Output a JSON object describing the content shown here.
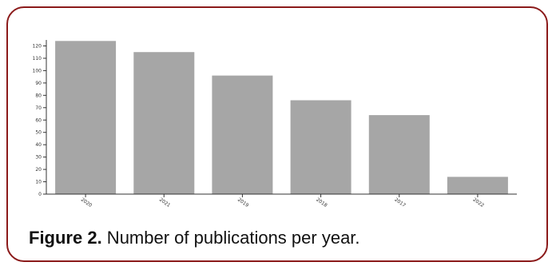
{
  "caption": {
    "label": "Figure 2.",
    "text": " Number of publications per year."
  },
  "colors": {
    "border": "#8b1a1a",
    "bar": "#a6a6a6",
    "axis": "#333333"
  },
  "chart_data": {
    "type": "bar",
    "categories": [
      "2020",
      "2021",
      "2019",
      "2018",
      "2017",
      "2022"
    ],
    "values": [
      124,
      115,
      96,
      76,
      64,
      14
    ],
    "title": "",
    "xlabel": "",
    "ylabel": "",
    "ylim": [
      0,
      120
    ],
    "yticks": [
      0,
      10,
      20,
      30,
      40,
      50,
      60,
      70,
      80,
      90,
      100,
      110,
      120
    ],
    "grid": false,
    "legend": "none"
  }
}
